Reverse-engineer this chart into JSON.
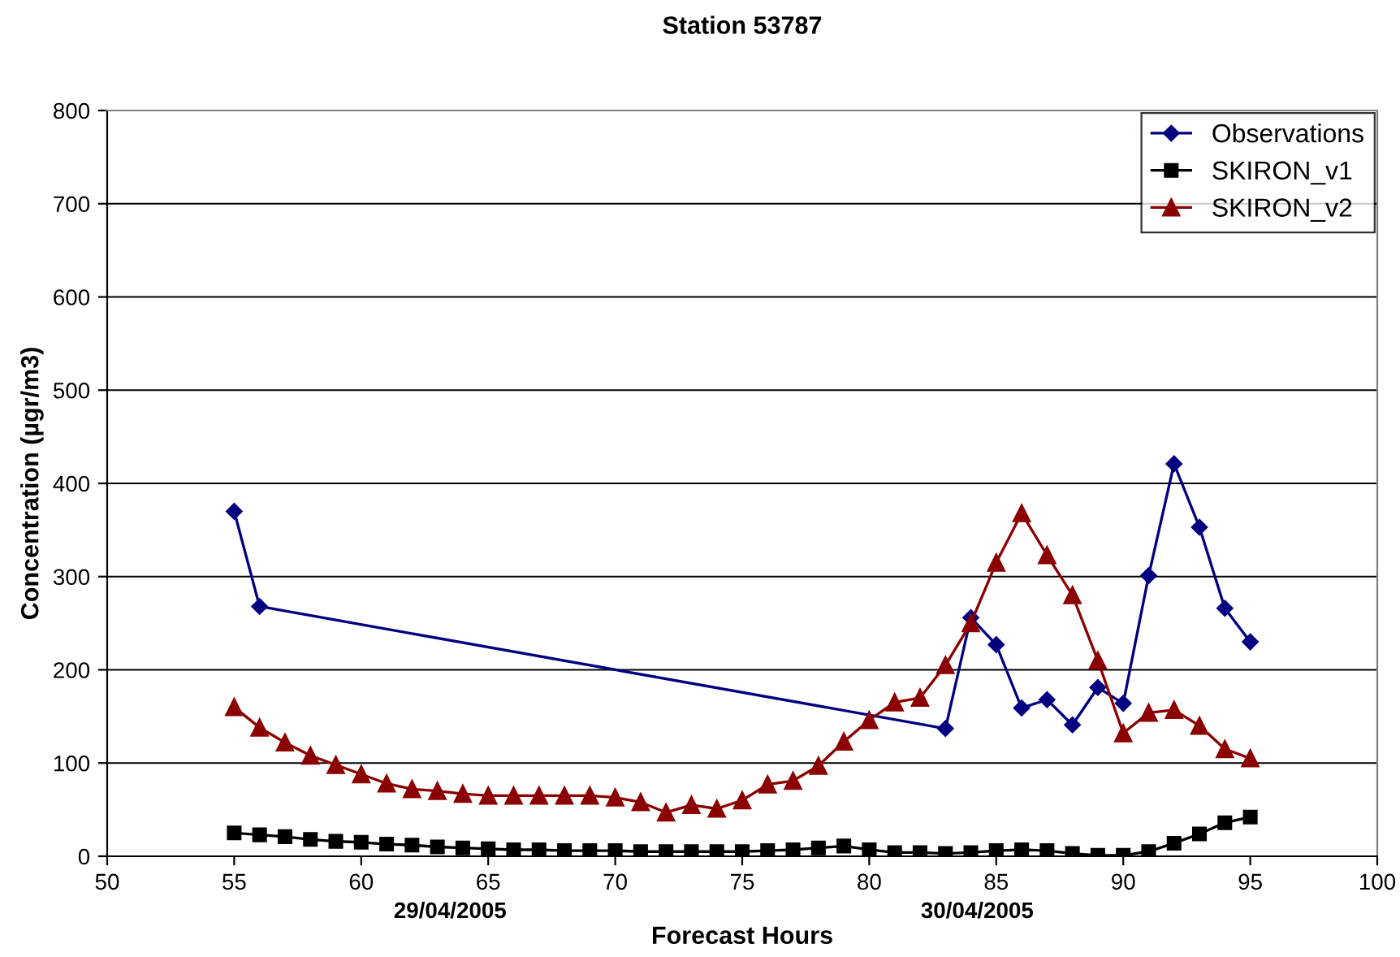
{
  "chart_data": {
    "type": "line",
    "title": "Station 53787",
    "xlabel": "Forecast Hours",
    "ylabel": "Concentration (µgr/m3)",
    "annotations": [
      "29/04/2005",
      "30/04/2005"
    ],
    "xlim": [
      50,
      100
    ],
    "xticks": [
      50,
      55,
      60,
      65,
      70,
      75,
      80,
      85,
      90,
      95,
      100
    ],
    "ylim": [
      0,
      800
    ],
    "yticks": [
      0,
      100,
      200,
      300,
      400,
      500,
      600,
      700,
      800
    ],
    "grid": "y",
    "legend": "top right",
    "series": [
      {
        "name": "Observations",
        "color": "#000080",
        "marker": "diamond",
        "x": [
          55,
          56,
          83,
          84,
          85,
          86,
          87,
          88,
          89,
          90,
          91,
          92,
          93,
          94,
          95
        ],
        "values": [
          370,
          268,
          137,
          256,
          227,
          159,
          168,
          141,
          181,
          164,
          301,
          421,
          353,
          266,
          230
        ]
      },
      {
        "name": "SKIRON_v1",
        "color": "#000000",
        "marker": "square",
        "x": [
          55,
          56,
          57,
          58,
          59,
          60,
          61,
          62,
          63,
          64,
          65,
          66,
          67,
          68,
          69,
          70,
          71,
          72,
          73,
          74,
          75,
          76,
          77,
          78,
          79,
          80,
          81,
          82,
          83,
          84,
          85,
          86,
          87,
          88,
          89,
          90,
          91,
          92,
          93,
          94,
          95
        ],
        "values": [
          25,
          23,
          21,
          18,
          16,
          15,
          13,
          12,
          10,
          9,
          8,
          7,
          7,
          6,
          6,
          6,
          5,
          5,
          5,
          5,
          5,
          6,
          7,
          9,
          11,
          7,
          4,
          4,
          3,
          4,
          6,
          7,
          6,
          3,
          1,
          1,
          5,
          14,
          24,
          36,
          42
        ]
      },
      {
        "name": "SKIRON_v2",
        "color": "#8b0000",
        "marker": "triangle",
        "x": [
          55,
          56,
          57,
          58,
          59,
          60,
          61,
          62,
          63,
          64,
          65,
          66,
          67,
          68,
          69,
          70,
          71,
          72,
          73,
          74,
          75,
          76,
          77,
          78,
          79,
          80,
          81,
          82,
          83,
          84,
          85,
          86,
          87,
          88,
          89,
          90,
          91,
          92,
          93,
          94,
          95
        ],
        "values": [
          160,
          138,
          122,
          108,
          98,
          88,
          78,
          72,
          70,
          67,
          65,
          65,
          65,
          65,
          65,
          63,
          58,
          47,
          55,
          51,
          60,
          77,
          81,
          97,
          123,
          146,
          165,
          170,
          205,
          250,
          315,
          368,
          323,
          280,
          210,
          132,
          154,
          157,
          140,
          115,
          105
        ]
      }
    ]
  }
}
